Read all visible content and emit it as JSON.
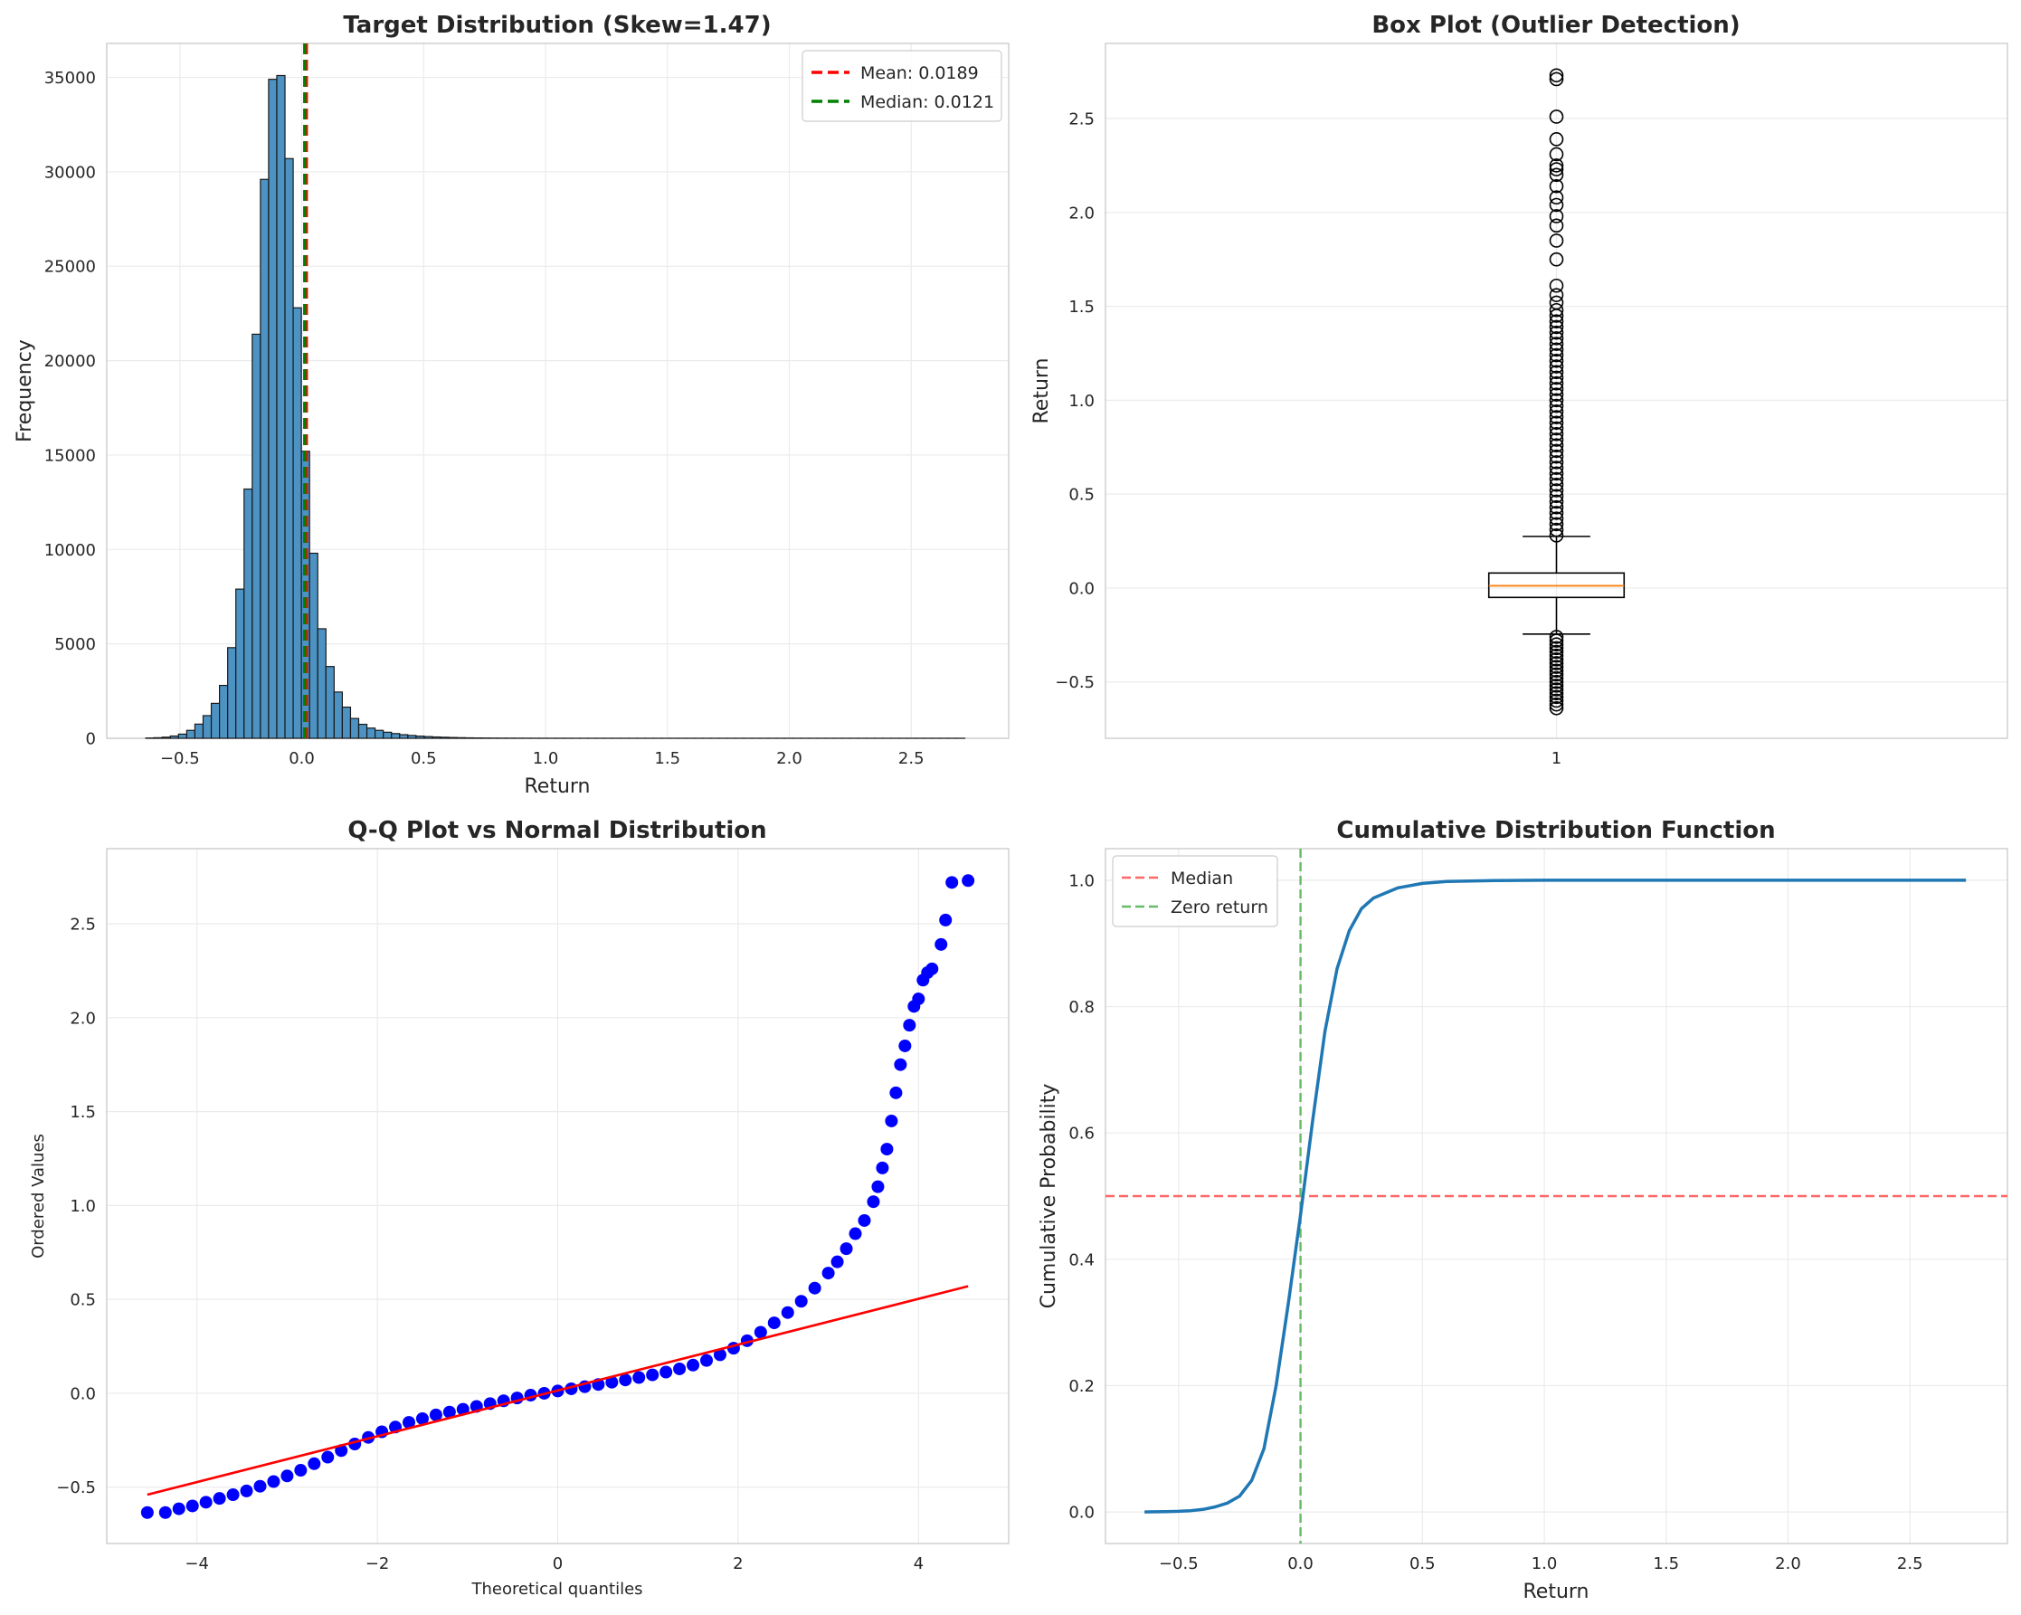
{
  "chart_data": [
    {
      "id": "hist",
      "type": "bar",
      "title": "Target Distribution (Skew=1.47)",
      "xlabel": "Return",
      "ylabel": "Frequency",
      "xlim": [
        -0.8,
        2.9
      ],
      "ylim": [
        0,
        36800
      ],
      "xticks": [
        -0.5,
        0.0,
        0.5,
        1.0,
        1.5,
        2.0,
        2.5
      ],
      "xtick_labels": [
        "−0.5",
        "0.0",
        "0.5",
        "1.0",
        "1.5",
        "2.0",
        "2.5"
      ],
      "yticks": [
        0,
        5000,
        10000,
        15000,
        20000,
        25000,
        30000,
        35000
      ],
      "ytick_labels": [
        "0",
        "5000",
        "10000",
        "15000",
        "20000",
        "25000",
        "30000",
        "35000"
      ],
      "bin_start": -0.64,
      "bin_width": 0.0336,
      "values": [
        15,
        30,
        60,
        120,
        220,
        420,
        750,
        1200,
        1850,
        2800,
        4800,
        7900,
        13200,
        21400,
        29600,
        34900,
        35100,
        30700,
        22800,
        15200,
        9800,
        5800,
        3800,
        2450,
        1650,
        1050,
        740,
        540,
        420,
        320,
        250,
        190,
        150,
        115,
        90,
        70,
        55,
        42,
        32,
        24,
        18,
        14,
        10,
        8,
        6,
        5,
        4,
        3,
        3,
        2,
        2,
        2,
        1,
        1,
        1,
        1,
        1,
        1,
        1,
        1,
        1,
        1,
        1,
        1,
        1,
        1,
        1,
        1,
        1,
        1,
        1,
        1,
        1,
        1,
        1,
        1,
        1,
        1,
        1,
        1,
        1,
        1,
        1,
        1,
        1,
        1,
        1,
        1,
        1,
        1,
        1,
        1,
        1,
        1,
        1,
        1,
        1,
        1,
        1,
        1
      ],
      "bar_color": "#4c92c3",
      "vlines": [
        {
          "name": "Mean: 0.0189",
          "x": 0.0189,
          "color": "#ff0000"
        },
        {
          "name": "Median: 0.0121",
          "x": 0.0121,
          "color": "#008000"
        }
      ],
      "legend": [
        "Mean: 0.0189",
        "Median: 0.0121"
      ],
      "legend_position": "upper right",
      "grid": true
    },
    {
      "id": "box",
      "type": "box",
      "title": "Box Plot (Outlier Detection)",
      "ylabel": "Return",
      "xlim": [
        0.5,
        1.5
      ],
      "ylim": [
        -0.8,
        2.9
      ],
      "xticks": [
        1
      ],
      "xtick_labels": [
        "1"
      ],
      "yticks": [
        -0.5,
        0.0,
        0.5,
        1.0,
        1.5,
        2.0,
        2.5
      ],
      "ytick_labels": [
        "−0.5",
        "0.0",
        "0.5",
        "1.0",
        "1.5",
        "2.0",
        "2.5"
      ],
      "box": {
        "q1": -0.05,
        "median": 0.0121,
        "q3": 0.08,
        "whisker_low": -0.245,
        "whisker_high": 0.275
      },
      "outliers_high": [
        0.28,
        0.31,
        0.34,
        0.37,
        0.4,
        0.43,
        0.46,
        0.49,
        0.52,
        0.55,
        0.58,
        0.61,
        0.64,
        0.67,
        0.7,
        0.73,
        0.76,
        0.79,
        0.82,
        0.85,
        0.88,
        0.91,
        0.94,
        0.97,
        1.0,
        1.03,
        1.06,
        1.09,
        1.12,
        1.15,
        1.18,
        1.21,
        1.24,
        1.27,
        1.3,
        1.33,
        1.36,
        1.39,
        1.42,
        1.45,
        1.48,
        1.52,
        1.56,
        1.61,
        1.75,
        1.85,
        1.93,
        1.98,
        2.04,
        2.08,
        2.14,
        2.2,
        2.23,
        2.25,
        2.31,
        2.39,
        2.51,
        2.71,
        2.73
      ],
      "outliers_low": [
        -0.26,
        -0.28,
        -0.3,
        -0.32,
        -0.34,
        -0.36,
        -0.38,
        -0.4,
        -0.42,
        -0.44,
        -0.46,
        -0.48,
        -0.5,
        -0.52,
        -0.54,
        -0.56,
        -0.58,
        -0.6,
        -0.62,
        -0.64
      ],
      "grid": true
    },
    {
      "id": "qq",
      "type": "scatter",
      "title": "Q-Q Plot vs Normal Distribution",
      "xlabel": "Theoretical quantiles",
      "ylabel": "Ordered Values",
      "xlim": [
        -5.0,
        5.0
      ],
      "ylim": [
        -0.8,
        2.9
      ],
      "xticks": [
        -4,
        -2,
        0,
        2,
        4
      ],
      "xtick_labels": [
        "−4",
        "−2",
        "0",
        "2",
        "4"
      ],
      "yticks": [
        -0.5,
        0.0,
        0.5,
        1.0,
        1.5,
        2.0,
        2.5
      ],
      "ytick_labels": [
        "−0.5",
        "0.0",
        "0.5",
        "1.0",
        "1.5",
        "2.0",
        "2.5"
      ],
      "points": [
        [
          -4.55,
          -0.635
        ],
        [
          -4.35,
          -0.635
        ],
        [
          -4.2,
          -0.615
        ],
        [
          -4.05,
          -0.6
        ],
        [
          -3.9,
          -0.58
        ],
        [
          -3.75,
          -0.56
        ],
        [
          -3.6,
          -0.54
        ],
        [
          -3.45,
          -0.52
        ],
        [
          -3.3,
          -0.495
        ],
        [
          -3.15,
          -0.47
        ],
        [
          -3.0,
          -0.44
        ],
        [
          -2.85,
          -0.41
        ],
        [
          -2.7,
          -0.375
        ],
        [
          -2.55,
          -0.34
        ],
        [
          -2.4,
          -0.305
        ],
        [
          -2.25,
          -0.27
        ],
        [
          -2.1,
          -0.235
        ],
        [
          -1.95,
          -0.205
        ],
        [
          -1.8,
          -0.18
        ],
        [
          -1.65,
          -0.155
        ],
        [
          -1.5,
          -0.135
        ],
        [
          -1.35,
          -0.115
        ],
        [
          -1.2,
          -0.1
        ],
        [
          -1.05,
          -0.085
        ],
        [
          -0.9,
          -0.07
        ],
        [
          -0.75,
          -0.055
        ],
        [
          -0.6,
          -0.04
        ],
        [
          -0.45,
          -0.025
        ],
        [
          -0.3,
          -0.01
        ],
        [
          -0.15,
          0.0
        ],
        [
          0.0,
          0.0121
        ],
        [
          0.15,
          0.024
        ],
        [
          0.3,
          0.035
        ],
        [
          0.45,
          0.047
        ],
        [
          0.6,
          0.059
        ],
        [
          0.75,
          0.071
        ],
        [
          0.9,
          0.084
        ],
        [
          1.05,
          0.098
        ],
        [
          1.2,
          0.113
        ],
        [
          1.35,
          0.13
        ],
        [
          1.5,
          0.15
        ],
        [
          1.65,
          0.175
        ],
        [
          1.8,
          0.205
        ],
        [
          1.95,
          0.24
        ],
        [
          2.1,
          0.28
        ],
        [
          2.25,
          0.325
        ],
        [
          2.4,
          0.375
        ],
        [
          2.55,
          0.43
        ],
        [
          2.7,
          0.49
        ],
        [
          2.85,
          0.56
        ],
        [
          3.0,
          0.64
        ],
        [
          3.1,
          0.7
        ],
        [
          3.2,
          0.77
        ],
        [
          3.3,
          0.85
        ],
        [
          3.4,
          0.92
        ],
        [
          3.5,
          1.02
        ],
        [
          3.55,
          1.1
        ],
        [
          3.6,
          1.2
        ],
        [
          3.65,
          1.3
        ],
        [
          3.7,
          1.45
        ],
        [
          3.75,
          1.6
        ],
        [
          3.8,
          1.75
        ],
        [
          3.85,
          1.85
        ],
        [
          3.9,
          1.96
        ],
        [
          3.95,
          2.06
        ],
        [
          4.0,
          2.1
        ],
        [
          4.05,
          2.2
        ],
        [
          4.1,
          2.24
        ],
        [
          4.15,
          2.26
        ],
        [
          4.25,
          2.39
        ],
        [
          4.3,
          2.52
        ],
        [
          4.37,
          2.72
        ],
        [
          4.55,
          2.73
        ]
      ],
      "fit_line": {
        "x": [
          -4.55,
          4.55
        ],
        "y": [
          -0.54,
          0.57
        ],
        "color": "#ff0000"
      },
      "point_color": "#0000ff",
      "grid": true
    },
    {
      "id": "cdf",
      "type": "line",
      "title": "Cumulative Distribution Function",
      "xlabel": "Return",
      "ylabel": "Cumulative Probability",
      "xlim": [
        -0.8,
        2.9
      ],
      "ylim": [
        -0.05,
        1.05
      ],
      "xticks": [
        -0.5,
        0.0,
        0.5,
        1.0,
        1.5,
        2.0,
        2.5
      ],
      "xtick_labels": [
        "−0.5",
        "0.0",
        "0.5",
        "1.0",
        "1.5",
        "2.0",
        "2.5"
      ],
      "yticks": [
        0.0,
        0.2,
        0.4,
        0.6,
        0.8,
        1.0
      ],
      "ytick_labels": [
        "0.0",
        "0.2",
        "0.4",
        "0.6",
        "0.8",
        "1.0"
      ],
      "x": [
        -0.64,
        -0.55,
        -0.5,
        -0.45,
        -0.4,
        -0.35,
        -0.3,
        -0.25,
        -0.2,
        -0.15,
        -0.1,
        -0.05,
        0.0,
        0.05,
        0.1,
        0.15,
        0.2,
        0.25,
        0.3,
        0.4,
        0.5,
        0.6,
        0.8,
        1.0,
        1.5,
        2.0,
        2.73
      ],
      "y": [
        0.0,
        0.0005,
        0.001,
        0.002,
        0.004,
        0.008,
        0.014,
        0.025,
        0.05,
        0.1,
        0.2,
        0.33,
        0.47,
        0.62,
        0.76,
        0.86,
        0.92,
        0.955,
        0.972,
        0.988,
        0.995,
        0.998,
        0.9995,
        1.0,
        1.0,
        1.0,
        1.0
      ],
      "line_color": "#1f77b4",
      "hlines": [
        {
          "name": "Median",
          "y": 0.5,
          "color": "#ff6666"
        }
      ],
      "vlines": [
        {
          "name": "Zero return",
          "x": 0.0,
          "color": "#66bb66"
        }
      ],
      "legend": [
        "Median",
        "Zero return"
      ],
      "legend_position": "upper left",
      "grid": true
    }
  ]
}
